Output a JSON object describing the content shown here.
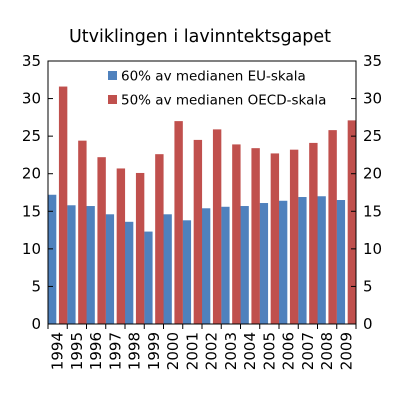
{
  "chart_data": {
    "type": "bar",
    "title": "Utviklingen i lavinntektsgapet",
    "xlabel": "",
    "ylabel": "",
    "ylim": [
      0,
      35
    ],
    "yticks": [
      0,
      5,
      10,
      15,
      20,
      25,
      30,
      35
    ],
    "secondary_yaxis": true,
    "grid": false,
    "legend_position": "top-right",
    "categories": [
      "1994",
      "1995",
      "1996",
      "1997",
      "1998",
      "1999",
      "2000",
      "2001",
      "2002",
      "2003",
      "2004",
      "2005",
      "2006",
      "2007",
      "2008",
      "2009"
    ],
    "series": [
      {
        "name": "60% av medianen EU-skala",
        "color": "#4f81bd",
        "values": [
          17.2,
          15.8,
          15.7,
          14.6,
          13.6,
          12.3,
          14.6,
          13.8,
          15.4,
          15.6,
          15.7,
          16.1,
          16.4,
          16.9,
          17.0,
          16.5
        ]
      },
      {
        "name": "50% av medianen OECD-skala",
        "color": "#c0504d",
        "values": [
          31.6,
          24.4,
          22.2,
          20.7,
          20.1,
          22.6,
          27.0,
          24.5,
          25.9,
          23.9,
          23.4,
          22.7,
          23.2,
          24.1,
          25.8,
          27.1
        ]
      }
    ]
  }
}
